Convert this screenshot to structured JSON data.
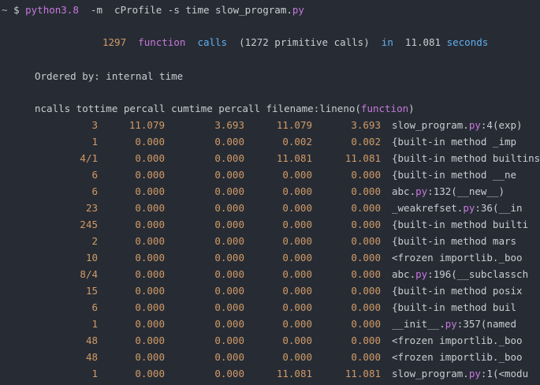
{
  "prompt": {
    "tilde": "~",
    "dollar": "$",
    "cmd": "python3.8",
    "flag_m": "-m",
    "module": "cProfile",
    "flag_s": "-s",
    "sort_key": "time",
    "file_base": "slow_program.",
    "file_ext": "py"
  },
  "summary": {
    "count": "1297",
    "word_function": "function",
    "word_calls": "calls",
    "primitive": "(1272 primitive calls)",
    "word_in": "in",
    "seconds_value": "11.081",
    "word_seconds": "seconds"
  },
  "ordered_by": "Ordered by: internal time",
  "header": {
    "text": "ncalls tottime percall cumtime percall filename:lineno(",
    "func_word": "function",
    "close": ")"
  },
  "rows": [
    {
      "ncalls": "3",
      "tottime": "11.079",
      "percall1": "3.693",
      "cumtime": "11.079",
      "percall2": "3.693",
      "fn_a": "slow_program.",
      "fn_ext": "py",
      "fn_b": ":4(exp)"
    },
    {
      "ncalls": "1",
      "tottime": "0.000",
      "percall1": "0.000",
      "cumtime": "0.002",
      "percall2": "0.002",
      "fn_a": "{built-in method _imp",
      "fn_ext": "",
      "fn_b": ""
    },
    {
      "ncalls": "4/1",
      "tottime": "0.000",
      "percall1": "0.000",
      "cumtime": "11.081",
      "percall2": "11.081",
      "fn_a": "{built-in method builtins",
      "fn_ext": "",
      "fn_b": ""
    },
    {
      "ncalls": "6",
      "tottime": "0.000",
      "percall1": "0.000",
      "cumtime": "0.000",
      "percall2": "0.000",
      "fn_a": "{built-in method __ne",
      "fn_ext": "",
      "fn_b": ""
    },
    {
      "ncalls": "6",
      "tottime": "0.000",
      "percall1": "0.000",
      "cumtime": "0.000",
      "percall2": "0.000",
      "fn_a": "abc.",
      "fn_ext": "py",
      "fn_b": ":132(__new__)"
    },
    {
      "ncalls": "23",
      "tottime": "0.000",
      "percall1": "0.000",
      "cumtime": "0.000",
      "percall2": "0.000",
      "fn_a": "_weakrefset.",
      "fn_ext": "py",
      "fn_b": ":36(__in"
    },
    {
      "ncalls": "245",
      "tottime": "0.000",
      "percall1": "0.000",
      "cumtime": "0.000",
      "percall2": "0.000",
      "fn_a": "{built-in method builti",
      "fn_ext": "",
      "fn_b": ""
    },
    {
      "ncalls": "2",
      "tottime": "0.000",
      "percall1": "0.000",
      "cumtime": "0.000",
      "percall2": "0.000",
      "fn_a": "{built-in method mars",
      "fn_ext": "",
      "fn_b": ""
    },
    {
      "ncalls": "10",
      "tottime": "0.000",
      "percall1": "0.000",
      "cumtime": "0.000",
      "percall2": "0.000",
      "fn_a": "<frozen importlib._boo",
      "fn_ext": "",
      "fn_b": ""
    },
    {
      "ncalls": "8/4",
      "tottime": "0.000",
      "percall1": "0.000",
      "cumtime": "0.000",
      "percall2": "0.000",
      "fn_a": "abc.",
      "fn_ext": "py",
      "fn_b": ":196(__subclassch"
    },
    {
      "ncalls": "15",
      "tottime": "0.000",
      "percall1": "0.000",
      "cumtime": "0.000",
      "percall2": "0.000",
      "fn_a": "{built-in method posix",
      "fn_ext": "",
      "fn_b": ""
    },
    {
      "ncalls": "6",
      "tottime": "0.000",
      "percall1": "0.000",
      "cumtime": "0.000",
      "percall2": "0.000",
      "fn_a": "{built-in method buil",
      "fn_ext": "",
      "fn_b": ""
    },
    {
      "ncalls": "1",
      "tottime": "0.000",
      "percall1": "0.000",
      "cumtime": "0.000",
      "percall2": "0.000",
      "fn_a": "__init__.",
      "fn_ext": "py",
      "fn_b": ":357(named"
    },
    {
      "ncalls": "48",
      "tottime": "0.000",
      "percall1": "0.000",
      "cumtime": "0.000",
      "percall2": "0.000",
      "fn_a": "<frozen importlib._boo",
      "fn_ext": "",
      "fn_b": ""
    },
    {
      "ncalls": "48",
      "tottime": "0.000",
      "percall1": "0.000",
      "cumtime": "0.000",
      "percall2": "0.000",
      "fn_a": "<frozen importlib._boo",
      "fn_ext": "",
      "fn_b": ""
    },
    {
      "ncalls": "1",
      "tottime": "0.000",
      "percall1": "0.000",
      "cumtime": "11.081",
      "percall2": "11.081",
      "fn_a": "slow_program.",
      "fn_ext": "py",
      "fn_b": ":1(<modu"
    }
  ]
}
